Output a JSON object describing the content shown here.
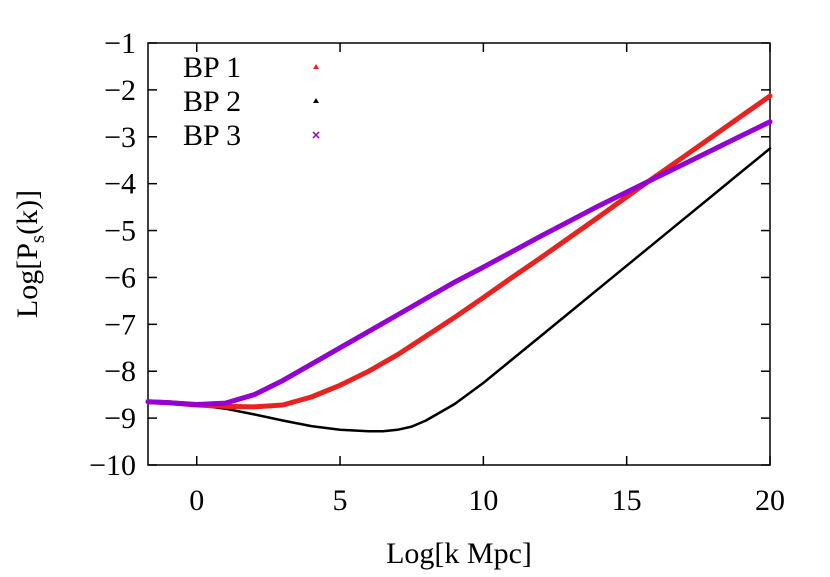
{
  "chart_data": {
    "type": "line",
    "title": "",
    "xlabel": "Log[k Mpc]",
    "ylabel": {
      "main": "Log[P",
      "sub": "s",
      "tail": "(k)]"
    },
    "xlim": [
      -1.7,
      20
    ],
    "ylim": [
      -10,
      -1
    ],
    "xticks": [
      0,
      5,
      10,
      15,
      20
    ],
    "yticks": [
      -10,
      -9,
      -8,
      -7,
      -6,
      -5,
      -4,
      -3,
      -2,
      -1
    ],
    "xtick_labels": [
      "0",
      "5",
      "10",
      "15",
      "20"
    ],
    "ytick_labels": [
      "−10",
      "−9",
      "−8",
      "−7",
      "−6",
      "−5",
      "−4",
      "−3",
      "−2",
      "−1"
    ],
    "grid": false,
    "legend_position": "top-left",
    "series": [
      {
        "name": "BP 1",
        "color": "#e8231f",
        "marker": "triangle",
        "x": [
          -1.7,
          -1,
          0,
          1,
          2,
          3,
          4,
          5,
          6,
          7,
          8,
          9,
          10,
          11,
          12,
          13,
          14,
          15,
          16,
          17,
          18,
          19,
          20
        ],
        "y": [
          -8.65,
          -8.67,
          -8.72,
          -8.75,
          -8.76,
          -8.72,
          -8.55,
          -8.3,
          -8.0,
          -7.65,
          -7.25,
          -6.85,
          -6.43,
          -6.0,
          -5.58,
          -5.15,
          -4.72,
          -4.28,
          -3.85,
          -3.42,
          -2.99,
          -2.56,
          -2.13
        ]
      },
      {
        "name": "BP 2",
        "color": "#000000",
        "marker": "triangle",
        "x": [
          -1.7,
          -1,
          0,
          1,
          2,
          3,
          4,
          5,
          6,
          6.5,
          7,
          7.5,
          8,
          9,
          10,
          11,
          12,
          13,
          14,
          15,
          16,
          17,
          18,
          19,
          20
        ],
        "y": [
          -8.65,
          -8.67,
          -8.72,
          -8.8,
          -8.92,
          -9.05,
          -9.17,
          -9.25,
          -9.28,
          -9.28,
          -9.25,
          -9.18,
          -9.05,
          -8.7,
          -8.25,
          -7.75,
          -7.25,
          -6.75,
          -6.25,
          -5.75,
          -5.25,
          -4.75,
          -4.25,
          -3.75,
          -3.25
        ]
      },
      {
        "name": "BP 3",
        "color": "#9400d3",
        "marker": "cross",
        "x": [
          -1.7,
          -1,
          0,
          1,
          2,
          3,
          4,
          5,
          6,
          7,
          8,
          9,
          10,
          11,
          12,
          13,
          14,
          15,
          16,
          17,
          18,
          19,
          20
        ],
        "y": [
          -8.65,
          -8.67,
          -8.71,
          -8.68,
          -8.5,
          -8.2,
          -7.85,
          -7.5,
          -7.15,
          -6.8,
          -6.45,
          -6.1,
          -5.78,
          -5.45,
          -5.12,
          -4.8,
          -4.48,
          -4.18,
          -3.88,
          -3.58,
          -3.28,
          -2.98,
          -2.68
        ]
      }
    ]
  }
}
